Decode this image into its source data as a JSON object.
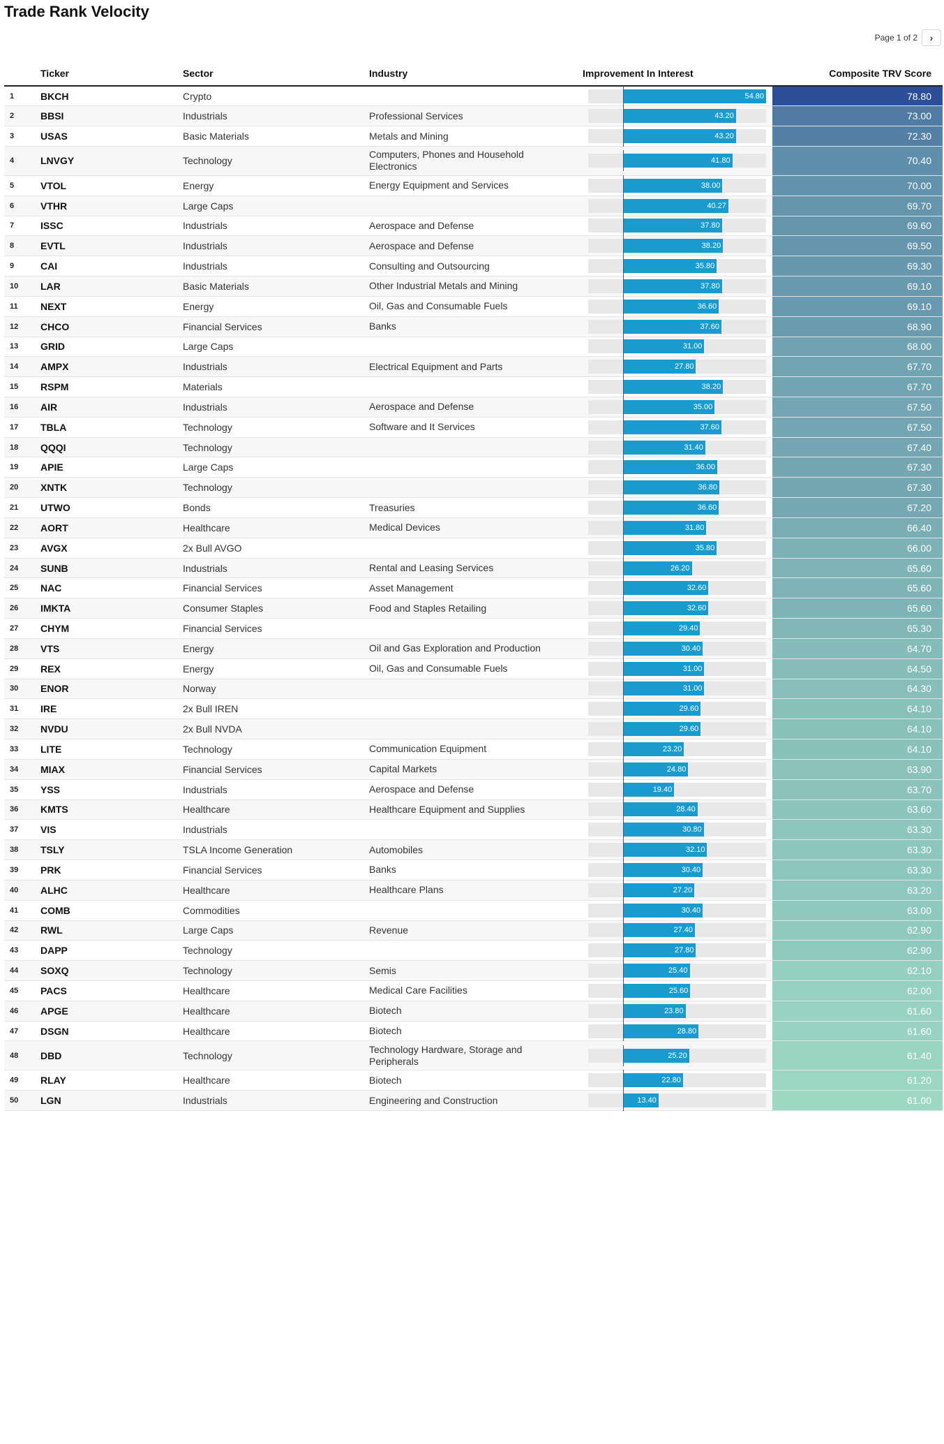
{
  "page": {
    "title": "Trade Rank Velocity",
    "pager_text": "Page 1 of 2",
    "next_icon": "›"
  },
  "columns": {
    "ticker": "Ticker",
    "sector": "Sector",
    "industry": "Industry",
    "improvement": "Improvement In Interest",
    "score": "Composite TRV Score"
  },
  "scale": {
    "improvement_max": 54.8,
    "score_max": 78.8,
    "score_min": 61.0
  },
  "colors": {
    "bar": "#199bd0",
    "score_high": "#2b4e96",
    "score_low": "#9cd8c2"
  },
  "rows": [
    {
      "rank": "1",
      "ticker": "BKCH",
      "sector": "Crypto",
      "industry": "",
      "improvement": 54.8,
      "improvement_label": "54.80",
      "score": 78.8,
      "score_label": "78.80"
    },
    {
      "rank": "2",
      "ticker": "BBSI",
      "sector": "Industrials",
      "industry": "Professional Services",
      "improvement": 43.2,
      "improvement_label": "43.20",
      "score": 73.0,
      "score_label": "73.00"
    },
    {
      "rank": "3",
      "ticker": "USAS",
      "sector": "Basic Materials",
      "industry": "Metals and Mining",
      "improvement": 43.2,
      "improvement_label": "43.20",
      "score": 72.3,
      "score_label": "72.30"
    },
    {
      "rank": "4",
      "ticker": "LNVGY",
      "sector": "Technology",
      "industry": "Computers, Phones and Household Electronics",
      "improvement": 41.8,
      "improvement_label": "41.80",
      "score": 70.4,
      "score_label": "70.40",
      "tall": true
    },
    {
      "rank": "5",
      "ticker": "VTOL",
      "sector": "Energy",
      "industry": "Energy Equipment and Services",
      "improvement": 38.0,
      "improvement_label": "38.00",
      "score": 70.0,
      "score_label": "70.00"
    },
    {
      "rank": "6",
      "ticker": "VTHR",
      "sector": "Large Caps",
      "industry": "",
      "improvement": 40.27,
      "improvement_label": "40.27",
      "score": 69.7,
      "score_label": "69.70"
    },
    {
      "rank": "7",
      "ticker": "ISSC",
      "sector": "Industrials",
      "industry": "Aerospace and Defense",
      "improvement": 37.8,
      "improvement_label": "37.80",
      "score": 69.6,
      "score_label": "69.60"
    },
    {
      "rank": "8",
      "ticker": "EVTL",
      "sector": "Industrials",
      "industry": "Aerospace and Defense",
      "improvement": 38.2,
      "improvement_label": "38.20",
      "score": 69.5,
      "score_label": "69.50"
    },
    {
      "rank": "9",
      "ticker": "CAI",
      "sector": "Industrials",
      "industry": "Consulting and Outsourcing",
      "improvement": 35.8,
      "improvement_label": "35.80",
      "score": 69.3,
      "score_label": "69.30"
    },
    {
      "rank": "10",
      "ticker": "LAR",
      "sector": "Basic Materials",
      "industry": "Other Industrial Metals and Mining",
      "improvement": 37.8,
      "improvement_label": "37.80",
      "score": 69.1,
      "score_label": "69.10"
    },
    {
      "rank": "11",
      "ticker": "NEXT",
      "sector": "Energy",
      "industry": "Oil, Gas and Consumable Fuels",
      "improvement": 36.6,
      "improvement_label": "36.60",
      "score": 69.1,
      "score_label": "69.10"
    },
    {
      "rank": "12",
      "ticker": "CHCO",
      "sector": "Financial Services",
      "industry": "Banks",
      "improvement": 37.6,
      "improvement_label": "37.60",
      "score": 68.9,
      "score_label": "68.90"
    },
    {
      "rank": "13",
      "ticker": "GRID",
      "sector": "Large Caps",
      "industry": "",
      "improvement": 31.0,
      "improvement_label": "31.00",
      "score": 68.0,
      "score_label": "68.00"
    },
    {
      "rank": "14",
      "ticker": "AMPX",
      "sector": "Industrials",
      "industry": "Electrical Equipment and Parts",
      "improvement": 27.8,
      "improvement_label": "27.80",
      "score": 67.7,
      "score_label": "67.70"
    },
    {
      "rank": "15",
      "ticker": "RSPM",
      "sector": "Materials",
      "industry": "",
      "improvement": 38.2,
      "improvement_label": "38.20",
      "score": 67.7,
      "score_label": "67.70"
    },
    {
      "rank": "16",
      "ticker": "AIR",
      "sector": "Industrials",
      "industry": "Aerospace and Defense",
      "improvement": 35.0,
      "improvement_label": "35.00",
      "score": 67.5,
      "score_label": "67.50"
    },
    {
      "rank": "17",
      "ticker": "TBLA",
      "sector": "Technology",
      "industry": "Software and It Services",
      "improvement": 37.6,
      "improvement_label": "37.60",
      "score": 67.5,
      "score_label": "67.50"
    },
    {
      "rank": "18",
      "ticker": "QQQI",
      "sector": "Technology",
      "industry": "",
      "improvement": 31.4,
      "improvement_label": "31.40",
      "score": 67.4,
      "score_label": "67.40"
    },
    {
      "rank": "19",
      "ticker": "APIE",
      "sector": "Large Caps",
      "industry": "",
      "improvement": 36.0,
      "improvement_label": "36.00",
      "score": 67.3,
      "score_label": "67.30"
    },
    {
      "rank": "20",
      "ticker": "XNTK",
      "sector": "Technology",
      "industry": "",
      "improvement": 36.8,
      "improvement_label": "36.80",
      "score": 67.3,
      "score_label": "67.30"
    },
    {
      "rank": "21",
      "ticker": "UTWO",
      "sector": "Bonds",
      "industry": "Treasuries",
      "improvement": 36.6,
      "improvement_label": "36.60",
      "score": 67.2,
      "score_label": "67.20"
    },
    {
      "rank": "22",
      "ticker": "AORT",
      "sector": "Healthcare",
      "industry": "Medical Devices",
      "improvement": 31.8,
      "improvement_label": "31.80",
      "score": 66.4,
      "score_label": "66.40"
    },
    {
      "rank": "23",
      "ticker": "AVGX",
      "sector": "2x Bull AVGO",
      "industry": "",
      "improvement": 35.8,
      "improvement_label": "35.80",
      "score": 66.0,
      "score_label": "66.00"
    },
    {
      "rank": "24",
      "ticker": "SUNB",
      "sector": "Industrials",
      "industry": "Rental and Leasing Services",
      "improvement": 26.2,
      "improvement_label": "26.20",
      "score": 65.6,
      "score_label": "65.60"
    },
    {
      "rank": "25",
      "ticker": "NAC",
      "sector": "Financial Services",
      "industry": "Asset Management",
      "improvement": 32.6,
      "improvement_label": "32.60",
      "score": 65.6,
      "score_label": "65.60"
    },
    {
      "rank": "26",
      "ticker": "IMKTA",
      "sector": "Consumer Staples",
      "industry": "Food and Staples Retailing",
      "improvement": 32.6,
      "improvement_label": "32.60",
      "score": 65.6,
      "score_label": "65.60"
    },
    {
      "rank": "27",
      "ticker": "CHYM",
      "sector": "Financial Services",
      "industry": "",
      "improvement": 29.4,
      "improvement_label": "29.40",
      "score": 65.3,
      "score_label": "65.30"
    },
    {
      "rank": "28",
      "ticker": "VTS",
      "sector": "Energy",
      "industry": "Oil and Gas Exploration and Production",
      "improvement": 30.4,
      "improvement_label": "30.40",
      "score": 64.7,
      "score_label": "64.70"
    },
    {
      "rank": "29",
      "ticker": "REX",
      "sector": "Energy",
      "industry": "Oil, Gas and Consumable Fuels",
      "improvement": 31.0,
      "improvement_label": "31.00",
      "score": 64.5,
      "score_label": "64.50"
    },
    {
      "rank": "30",
      "ticker": "ENOR",
      "sector": "Norway",
      "industry": "",
      "improvement": 31.0,
      "improvement_label": "31.00",
      "score": 64.3,
      "score_label": "64.30"
    },
    {
      "rank": "31",
      "ticker": "IRE",
      "sector": "2x Bull IREN",
      "industry": "",
      "improvement": 29.6,
      "improvement_label": "29.60",
      "score": 64.1,
      "score_label": "64.10"
    },
    {
      "rank": "32",
      "ticker": "NVDU",
      "sector": "2x Bull NVDA",
      "industry": "",
      "improvement": 29.6,
      "improvement_label": "29.60",
      "score": 64.1,
      "score_label": "64.10"
    },
    {
      "rank": "33",
      "ticker": "LITE",
      "sector": "Technology",
      "industry": "Communication Equipment",
      "improvement": 23.2,
      "improvement_label": "23.20",
      "score": 64.1,
      "score_label": "64.10"
    },
    {
      "rank": "34",
      "ticker": "MIAX",
      "sector": "Financial Services",
      "industry": "Capital Markets",
      "improvement": 24.8,
      "improvement_label": "24.80",
      "score": 63.9,
      "score_label": "63.90"
    },
    {
      "rank": "35",
      "ticker": "YSS",
      "sector": "Industrials",
      "industry": "Aerospace and Defense",
      "improvement": 19.4,
      "improvement_label": "19.40",
      "score": 63.7,
      "score_label": "63.70"
    },
    {
      "rank": "36",
      "ticker": "KMTS",
      "sector": "Healthcare",
      "industry": "Healthcare Equipment and Supplies",
      "improvement": 28.4,
      "improvement_label": "28.40",
      "score": 63.6,
      "score_label": "63.60"
    },
    {
      "rank": "37",
      "ticker": "VIS",
      "sector": "Industrials",
      "industry": "",
      "improvement": 30.8,
      "improvement_label": "30.80",
      "score": 63.3,
      "score_label": "63.30"
    },
    {
      "rank": "38",
      "ticker": "TSLY",
      "sector": "TSLA Income Generation",
      "industry": "Automobiles",
      "improvement": 32.1,
      "improvement_label": "32.10",
      "score": 63.3,
      "score_label": "63.30"
    },
    {
      "rank": "39",
      "ticker": "PRK",
      "sector": "Financial Services",
      "industry": "Banks",
      "improvement": 30.4,
      "improvement_label": "30.40",
      "score": 63.3,
      "score_label": "63.30"
    },
    {
      "rank": "40",
      "ticker": "ALHC",
      "sector": "Healthcare",
      "industry": "Healthcare Plans",
      "improvement": 27.2,
      "improvement_label": "27.20",
      "score": 63.2,
      "score_label": "63.20"
    },
    {
      "rank": "41",
      "ticker": "COMB",
      "sector": "Commodities",
      "industry": "",
      "improvement": 30.4,
      "improvement_label": "30.40",
      "score": 63.0,
      "score_label": "63.00"
    },
    {
      "rank": "42",
      "ticker": "RWL",
      "sector": "Large Caps",
      "industry": "Revenue",
      "improvement": 27.4,
      "improvement_label": "27.40",
      "score": 62.9,
      "score_label": "62.90"
    },
    {
      "rank": "43",
      "ticker": "DAPP",
      "sector": "Technology",
      "industry": "",
      "improvement": 27.8,
      "improvement_label": "27.80",
      "score": 62.9,
      "score_label": "62.90"
    },
    {
      "rank": "44",
      "ticker": "SOXQ",
      "sector": "Technology",
      "industry": "Semis",
      "improvement": 25.4,
      "improvement_label": "25.40",
      "score": 62.1,
      "score_label": "62.10"
    },
    {
      "rank": "45",
      "ticker": "PACS",
      "sector": "Healthcare",
      "industry": "Medical Care Facilities",
      "improvement": 25.6,
      "improvement_label": "25.60",
      "score": 62.0,
      "score_label": "62.00"
    },
    {
      "rank": "46",
      "ticker": "APGE",
      "sector": "Healthcare",
      "industry": "Biotech",
      "improvement": 23.8,
      "improvement_label": "23.80",
      "score": 61.6,
      "score_label": "61.60"
    },
    {
      "rank": "47",
      "ticker": "DSGN",
      "sector": "Healthcare",
      "industry": "Biotech",
      "improvement": 28.8,
      "improvement_label": "28.80",
      "score": 61.6,
      "score_label": "61.60"
    },
    {
      "rank": "48",
      "ticker": "DBD",
      "sector": "Technology",
      "industry": "Technology Hardware, Storage and Peripherals",
      "improvement": 25.2,
      "improvement_label": "25.20",
      "score": 61.4,
      "score_label": "61.40",
      "tall": true
    },
    {
      "rank": "49",
      "ticker": "RLAY",
      "sector": "Healthcare",
      "industry": "Biotech",
      "improvement": 22.8,
      "improvement_label": "22.80",
      "score": 61.2,
      "score_label": "61.20"
    },
    {
      "rank": "50",
      "ticker": "LGN",
      "sector": "Industrials",
      "industry": "Engineering and Construction",
      "improvement": 13.4,
      "improvement_label": "13.40",
      "score": 61.0,
      "score_label": "61.00"
    }
  ]
}
